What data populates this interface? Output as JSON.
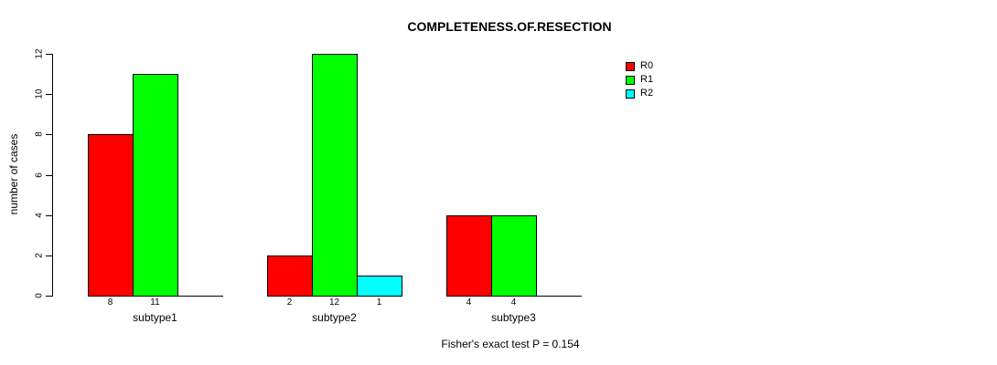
{
  "chart_data": {
    "type": "bar",
    "title": "COMPLETENESS.OF.RESECTION",
    "ylabel": "number of cases",
    "xlabel": "",
    "categories": [
      "subtype1",
      "subtype2",
      "subtype3"
    ],
    "series": [
      {
        "name": "R0",
        "color": "#ff0000",
        "values": [
          8,
          2,
          4
        ]
      },
      {
        "name": "R1",
        "color": "#00ff00",
        "values": [
          11,
          12,
          4
        ]
      },
      {
        "name": "R2",
        "color": "#00ffff",
        "values": [
          0,
          1,
          0
        ]
      }
    ],
    "ylim": [
      0,
      12
    ],
    "yticks": [
      0,
      2,
      4,
      6,
      8,
      10,
      12
    ],
    "bar_value_labels": true,
    "grid": false,
    "legend_position": "top-right-inside",
    "annotation": "Fisher's exact test P = 0.154",
    "background": "#ffffff",
    "axis_color": "#000000"
  }
}
